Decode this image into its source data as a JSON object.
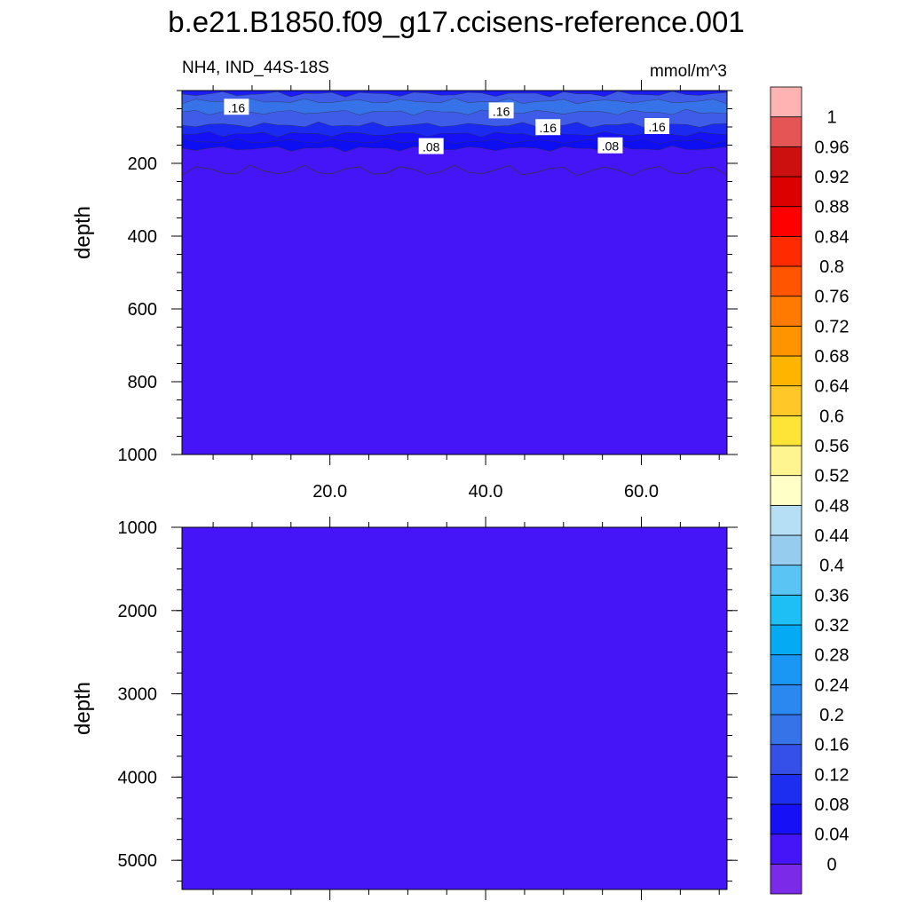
{
  "title": "b.e21.B1850.f09_g17.ccisens-reference.001",
  "chart_data": {
    "type": "contour",
    "variable_label": "NH4, IND_44S-18S",
    "units_label": "mmol/m^3",
    "xlim": [
      1,
      71
    ],
    "x_ticks": [
      20,
      40,
      60
    ],
    "x_tick_labels": [
      "20.0",
      "40.0",
      "60.0"
    ],
    "panels": [
      {
        "name": "upper-panel",
        "ylabel": "depth",
        "ylim": [
          1000,
          0
        ],
        "y_ticks": [
          200,
          400,
          600,
          800,
          1000
        ],
        "y_tick_labels": [
          "200",
          "400",
          "600",
          "800",
          "1000"
        ],
        "band_boundary_depths": [
          10,
          30,
          60,
          95,
          120,
          140,
          160,
          220
        ],
        "band_colors": [
          "#1B1BF5",
          "#3E5CE8",
          "#3672E8",
          "#3E5CE8",
          "#1A2AF0",
          "#1510F5",
          "#0E0EF2",
          "#4615F7"
        ],
        "contour_labels": [
          {
            "text": ".16",
            "x": 8,
            "depth": 47
          },
          {
            "text": ".16",
            "x": 42,
            "depth": 57
          },
          {
            "text": ".16",
            "x": 48,
            "depth": 103
          },
          {
            "text": ".16",
            "x": 62,
            "depth": 100
          },
          {
            "text": ".08",
            "x": 33,
            "depth": 155
          },
          {
            "text": ".08",
            "x": 56,
            "depth": 153
          }
        ]
      },
      {
        "name": "lower-panel",
        "ylabel": "depth",
        "ylim": [
          5350,
          1000
        ],
        "y_ticks": [
          1000,
          2000,
          3000,
          4000,
          5000
        ],
        "y_tick_labels": [
          "1000",
          "2000",
          "3000",
          "4000",
          "5000"
        ],
        "fill_color": "#4615F7"
      }
    ],
    "colorbar": {
      "levels": [
        "0",
        "0.04",
        "0.08",
        "0.12",
        "0.16",
        "0.2",
        "0.24",
        "0.28",
        "0.32",
        "0.36",
        "0.4",
        "0.44",
        "0.48",
        "0.52",
        "0.56",
        "0.6",
        "0.64",
        "0.68",
        "0.72",
        "0.76",
        "0.8",
        "0.84",
        "0.88",
        "0.92",
        "0.96",
        "1"
      ],
      "colors_bottom_to_top": [
        "#7B2BE8",
        "#4615F7",
        "#1510F5",
        "#1E2EF0",
        "#3550E6",
        "#3672E8",
        "#2A88F0",
        "#1A96F5",
        "#05AAF5",
        "#1DBFF5",
        "#5AC5F5",
        "#96CDEE",
        "#B6DEF5",
        "#FFFFC8",
        "#FFF590",
        "#FFE438",
        "#FFC828",
        "#FFB400",
        "#FF9300",
        "#FF7A00",
        "#FF5500",
        "#FF2A00",
        "#FF0000",
        "#DD0000",
        "#CC1010",
        "#E55555",
        "#FFB3B3"
      ]
    }
  }
}
